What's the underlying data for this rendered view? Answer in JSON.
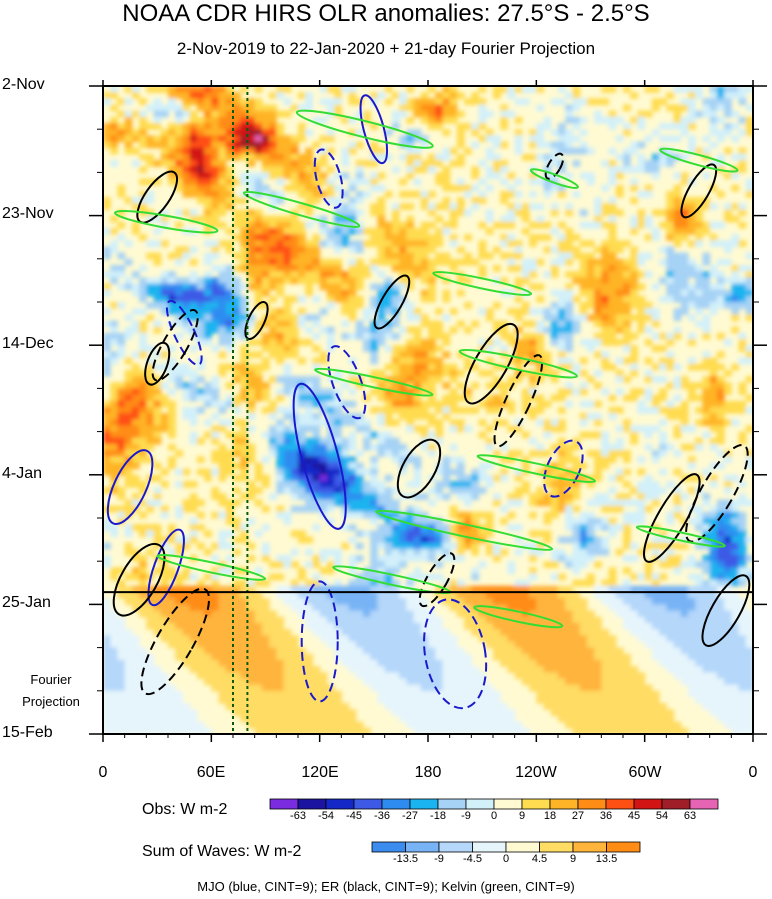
{
  "title": "NOAA CDR HIRS OLR anomalies: 27.5°S - 2.5°S",
  "subtitle": "2-Nov-2019 to 22-Jan-2020 + 21-day Fourier Projection",
  "fourier_label_1": "Fourier",
  "fourier_label_2": "Projection",
  "obs_label": "Obs: W m-2",
  "waves_label": "Sum of Waves: W m-2",
  "footer": "MJO (blue, CINT=9); ER (black, CINT=9); Kelvin (green, CINT=9)",
  "colors": {
    "mjo": "#1a1acc",
    "er": "#000000",
    "kelvin": "#33dd33"
  },
  "chart_data": {
    "type": "heatmap",
    "title": "NOAA CDR HIRS OLR anomalies: 27.5°S - 2.5°S",
    "subtitle": "2-Nov-2019 to 22-Jan-2020 + 21-day Fourier Projection",
    "x_ticks": [
      "0",
      "60E",
      "120E",
      "180",
      "120W",
      "60W",
      "0"
    ],
    "x_range_deg_east": [
      0,
      360
    ],
    "y_ticks": [
      "2-Nov",
      "23-Nov",
      "14-Dec",
      "4-Jan",
      "25-Jan",
      "15-Feb"
    ],
    "y_range_dates": [
      "2019-11-02",
      "2020-02-15"
    ],
    "observation_end": "2020-01-22",
    "fourier_projection_days": 21,
    "vertical_reference_lines_deg_east": [
      72,
      80
    ],
    "obs_colorbar": {
      "labels": [
        "-63",
        "-54",
        "-45",
        "-36",
        "-27",
        "-18",
        "-9",
        "0",
        "9",
        "18",
        "27",
        "36",
        "45",
        "54",
        "63"
      ],
      "colors": [
        "#7b2ce0",
        "#1a14a0",
        "#1428c8",
        "#3c5ae6",
        "#2e8cf0",
        "#1ab4f0",
        "#a6d2f5",
        "#d2f0fa",
        "#fffad2",
        "#ffdc50",
        "#ffb428",
        "#ff8c14",
        "#ff5014",
        "#d21414",
        "#a01e28",
        "#e664b4"
      ]
    },
    "waves_colorbar": {
      "labels": [
        "-13.5",
        "-9",
        "-4.5",
        "0",
        "4.5",
        "9",
        "13.5"
      ],
      "colors": [
        "#3c8cf0",
        "#78b4f5",
        "#b4d7fa",
        "#e6f5fc",
        "#fffad2",
        "#ffdc64",
        "#ffb43c",
        "#ff8c14"
      ]
    },
    "series": [
      {
        "name": "MJO",
        "values": [
          9
        ]
      },
      {
        "name": "ER",
        "values": [
          9
        ]
      },
      {
        "name": "Kelvin",
        "values": [
          9
        ]
      }
    ]
  }
}
